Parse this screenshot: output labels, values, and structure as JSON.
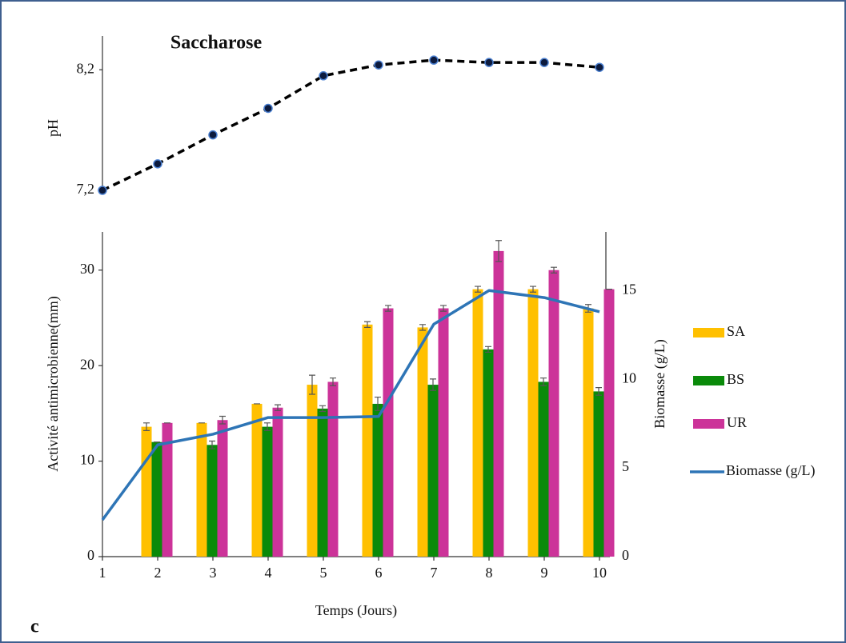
{
  "chart_data": [
    {
      "type": "line",
      "title": "Saccharose",
      "y_label": "pH",
      "x": [
        1,
        2,
        3,
        4,
        5,
        6,
        7,
        8,
        9,
        10
      ],
      "xlim": [
        1,
        10
      ],
      "ylim": [
        7.2,
        8.48
      ],
      "yticks": [
        {
          "value": 8.2,
          "label": "8,2"
        },
        {
          "value": 7.2,
          "label": "7,2"
        }
      ],
      "series": [
        {
          "name": "pH",
          "color": "#000000",
          "marker_color": "#0d1b3e",
          "dashed": true,
          "values": [
            7.2,
            7.42,
            7.66,
            7.88,
            8.15,
            8.24,
            8.28,
            8.26,
            8.26,
            8.22
          ]
        }
      ]
    },
    {
      "type": "bar",
      "annotation": "c",
      "x_label": "Temps (Jours)",
      "y_label": "Activité antimicrobienne(mm)",
      "y2_label": "Biomasse (g/L)",
      "categories": [
        "1",
        "2",
        "3",
        "4",
        "5",
        "6",
        "7",
        "8",
        "9",
        "10"
      ],
      "ylim": [
        0,
        34
      ],
      "yticks": [
        0,
        10,
        20,
        30
      ],
      "y2lim": [
        0,
        18.3
      ],
      "y2ticks": [
        0,
        5,
        10,
        15
      ],
      "series": [
        {
          "name": "SA",
          "color": "#ffc000",
          "values": [
            null,
            13.6,
            14,
            16,
            18,
            24.3,
            24,
            28,
            28,
            26
          ],
          "errors": [
            null,
            0.4,
            0,
            0,
            1,
            0.3,
            0.3,
            0.3,
            0.3,
            0.4
          ]
        },
        {
          "name": "BS",
          "color": "#0a8a0a",
          "values": [
            null,
            12,
            11.7,
            13.6,
            15.5,
            16,
            18,
            21.7,
            18.3,
            17.3
          ],
          "errors": [
            null,
            0,
            0.4,
            0.4,
            0.3,
            0.7,
            0.6,
            0.3,
            0.4,
            0.4
          ]
        },
        {
          "name": "UR",
          "color": "#cc3399",
          "values": [
            null,
            14,
            14.3,
            15.6,
            18.3,
            26,
            26,
            32,
            30,
            28
          ],
          "errors": [
            null,
            0,
            0.4,
            0.3,
            0.4,
            0.3,
            0.3,
            1.1,
            0.3,
            0
          ]
        },
        {
          "name": "Biomasse (g/L)",
          "type": "line",
          "axis": "y2",
          "color": "#2e75b6",
          "values": [
            2.07,
            6.3,
            6.9,
            7.84,
            7.84,
            7.9,
            13.1,
            15.0,
            14.6,
            13.8
          ]
        }
      ]
    }
  ]
}
